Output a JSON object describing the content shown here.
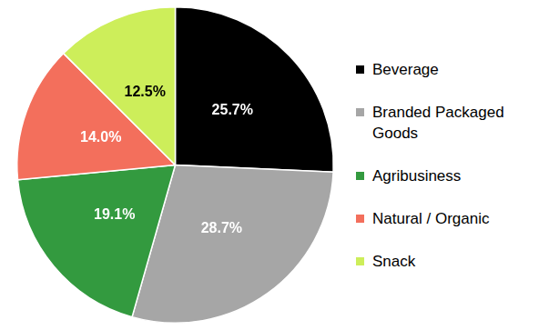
{
  "chart_data": {
    "type": "pie",
    "categories": [
      "Beverage",
      "Branded Packaged Goods",
      "Agribusiness",
      "Natural / Organic",
      "Snack"
    ],
    "values": [
      25.7,
      28.7,
      19.1,
      14.0,
      12.5
    ],
    "value_labels": [
      "25.7%",
      "28.7%",
      "19.1%",
      "14.0%",
      "12.5%"
    ],
    "colors": [
      "#000000",
      "#a6a6a6",
      "#339a3f",
      "#f36f5c",
      "#cdee5a"
    ],
    "data_labels": true,
    "legend": "right"
  }
}
